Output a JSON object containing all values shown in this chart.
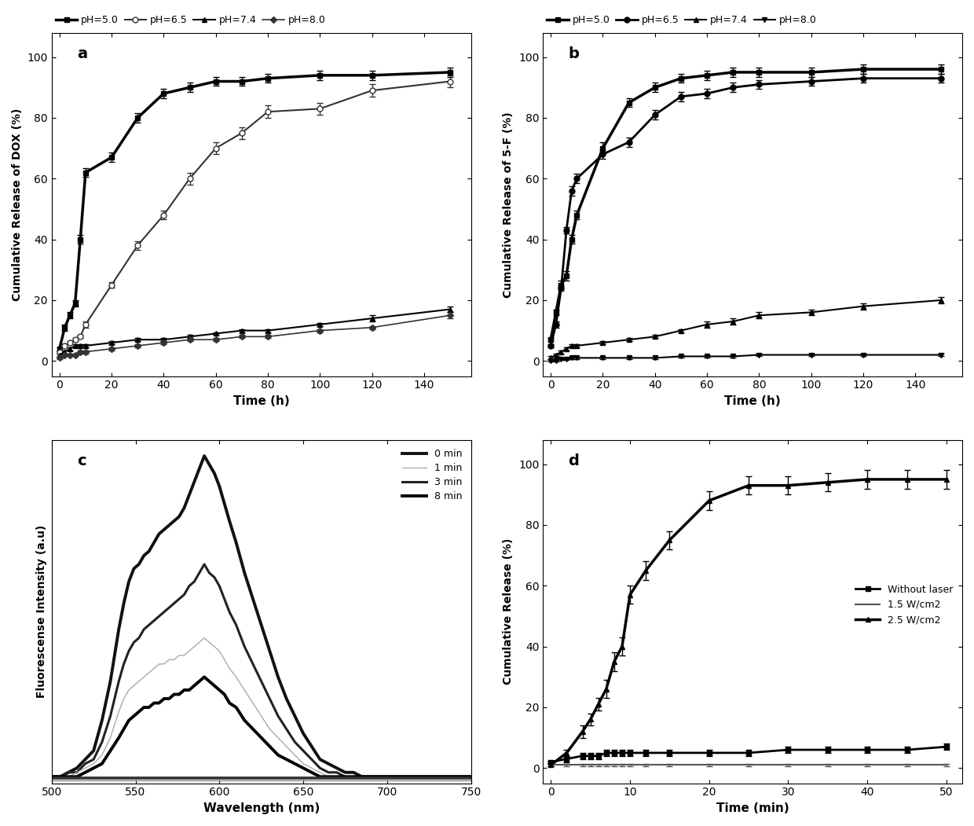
{
  "panel_a": {
    "time": [
      0,
      2,
      4,
      6,
      8,
      10,
      20,
      30,
      40,
      50,
      60,
      70,
      80,
      100,
      120,
      150
    ],
    "pH5": [
      4,
      11,
      15,
      19,
      40,
      62,
      67,
      80,
      88,
      90,
      92,
      92,
      93,
      94,
      94,
      95
    ],
    "pH5_err": [
      0.5,
      1,
      1,
      1,
      1.5,
      1.5,
      1.5,
      1.5,
      1.5,
      1.5,
      1.5,
      1.5,
      1.5,
      1.5,
      1.5,
      1.5
    ],
    "pH65": [
      3,
      5,
      6,
      7,
      8,
      12,
      25,
      38,
      48,
      60,
      70,
      75,
      82,
      83,
      89,
      92
    ],
    "pH65_err": [
      0.5,
      0.5,
      0.5,
      0.5,
      0.5,
      1,
      1,
      1.5,
      1.5,
      2,
      2,
      2,
      2,
      2,
      2,
      2
    ],
    "pH74": [
      2,
      3,
      4,
      5,
      5,
      5,
      6,
      7,
      7,
      8,
      9,
      10,
      10,
      12,
      14,
      17
    ],
    "pH74_err": [
      0.5,
      0.5,
      0.5,
      0.5,
      0.5,
      0.5,
      0.5,
      0.5,
      0.5,
      0.5,
      0.5,
      0.5,
      0.5,
      0.5,
      1,
      1
    ],
    "pH80": [
      1,
      2,
      2,
      2,
      3,
      3,
      4,
      5,
      6,
      7,
      7,
      8,
      8,
      10,
      11,
      15
    ],
    "pH80_err": [
      0.5,
      0.5,
      0.5,
      0.5,
      0.5,
      0.5,
      0.5,
      0.5,
      0.5,
      0.5,
      0.5,
      0.5,
      0.5,
      0.5,
      0.5,
      1
    ],
    "ylabel": "Cumulative Release of DOX (%)",
    "xlabel": "Time (h)",
    "label": "a",
    "ylim": [
      -5,
      108
    ],
    "xlim": [
      -3,
      158
    ]
  },
  "panel_b": {
    "time": [
      0,
      2,
      4,
      6,
      8,
      10,
      20,
      30,
      40,
      50,
      60,
      70,
      80,
      100,
      120,
      150
    ],
    "pH5": [
      7,
      16,
      25,
      28,
      40,
      48,
      70,
      85,
      90,
      93,
      94,
      95,
      95,
      95,
      96,
      96
    ],
    "pH5_err": [
      0.5,
      1,
      1.5,
      1.5,
      1.5,
      1.5,
      2,
      1.5,
      1.5,
      1.5,
      1.5,
      1.5,
      1.5,
      1.5,
      1.5,
      1.5
    ],
    "pH65": [
      5,
      12,
      24,
      43,
      56,
      60,
      68,
      72,
      81,
      87,
      88,
      90,
      91,
      92,
      93,
      93
    ],
    "pH65_err": [
      0.5,
      1,
      1,
      1,
      1.5,
      1.5,
      1.5,
      1.5,
      1.5,
      1.5,
      1.5,
      1.5,
      1.5,
      1.5,
      1.5,
      1.5
    ],
    "pH74": [
      1,
      2,
      3,
      4,
      5,
      5,
      6,
      7,
      8,
      10,
      12,
      13,
      15,
      16,
      18,
      20
    ],
    "pH74_err": [
      0.5,
      0.5,
      0.5,
      0.5,
      0.5,
      0.5,
      0.5,
      0.5,
      0.5,
      0.5,
      1,
      1,
      1,
      1,
      1,
      1
    ],
    "pH80": [
      0,
      0,
      0.5,
      0.5,
      1,
      1,
      1,
      1,
      1,
      1.5,
      1.5,
      1.5,
      2,
      2,
      2,
      2
    ],
    "pH80_err": [
      0.3,
      0.3,
      0.3,
      0.3,
      0.3,
      0.3,
      0.3,
      0.3,
      0.3,
      0.3,
      0.3,
      0.3,
      0.3,
      0.3,
      0.3,
      0.3
    ],
    "ylabel": "Cumulative Release of 5-F (%)",
    "xlabel": "Time (h)",
    "label": "b",
    "ylim": [
      -5,
      108
    ],
    "xlim": [
      -3,
      158
    ]
  },
  "panel_c": {
    "wl": [
      500,
      505,
      510,
      515,
      520,
      525,
      530,
      535,
      540,
      543,
      546,
      549,
      552,
      555,
      558,
      561,
      564,
      567,
      570,
      573,
      576,
      579,
      582,
      585,
      588,
      591,
      594,
      597,
      600,
      603,
      606,
      610,
      615,
      620,
      625,
      630,
      635,
      640,
      645,
      650,
      655,
      660,
      665,
      670,
      675,
      680,
      685,
      690,
      695,
      700,
      710,
      720,
      730,
      740,
      750
    ],
    "i0": [
      0.01,
      0.01,
      0.02,
      0.03,
      0.05,
      0.07,
      0.14,
      0.23,
      0.35,
      0.41,
      0.46,
      0.49,
      0.5,
      0.52,
      0.53,
      0.55,
      0.57,
      0.58,
      0.59,
      0.6,
      0.61,
      0.63,
      0.66,
      0.69,
      0.72,
      0.75,
      0.73,
      0.71,
      0.68,
      0.64,
      0.6,
      0.55,
      0.48,
      0.42,
      0.36,
      0.3,
      0.24,
      0.19,
      0.15,
      0.11,
      0.08,
      0.05,
      0.04,
      0.03,
      0.02,
      0.02,
      0.01,
      0.01,
      0.01,
      0.01,
      0.01,
      0.01,
      0.01,
      0.01,
      0.01
    ],
    "i3": [
      0.01,
      0.01,
      0.02,
      0.02,
      0.04,
      0.05,
      0.09,
      0.15,
      0.23,
      0.27,
      0.3,
      0.32,
      0.33,
      0.35,
      0.36,
      0.37,
      0.38,
      0.39,
      0.4,
      0.41,
      0.42,
      0.43,
      0.45,
      0.46,
      0.48,
      0.5,
      0.48,
      0.47,
      0.45,
      0.42,
      0.39,
      0.36,
      0.31,
      0.27,
      0.23,
      0.19,
      0.15,
      0.12,
      0.09,
      0.07,
      0.05,
      0.03,
      0.02,
      0.02,
      0.01,
      0.01,
      0.01,
      0.01,
      0.01,
      0.01,
      0.01,
      0.01,
      0.01,
      0.01,
      0.01
    ],
    "i1": [
      0.01,
      0.01,
      0.01,
      0.02,
      0.03,
      0.04,
      0.06,
      0.1,
      0.16,
      0.19,
      0.21,
      0.22,
      0.23,
      0.24,
      0.25,
      0.26,
      0.27,
      0.27,
      0.28,
      0.28,
      0.29,
      0.29,
      0.3,
      0.31,
      0.32,
      0.33,
      0.32,
      0.31,
      0.3,
      0.28,
      0.26,
      0.24,
      0.21,
      0.18,
      0.15,
      0.12,
      0.1,
      0.08,
      0.06,
      0.04,
      0.03,
      0.02,
      0.01,
      0.01,
      0.01,
      0.01,
      0.01,
      0.01,
      0.01,
      0.01,
      0.01,
      0.01,
      0.01,
      0.01,
      0.01
    ],
    "i8": [
      0.01,
      0.01,
      0.01,
      0.01,
      0.02,
      0.03,
      0.04,
      0.07,
      0.1,
      0.12,
      0.14,
      0.15,
      0.16,
      0.17,
      0.17,
      0.18,
      0.18,
      0.19,
      0.19,
      0.2,
      0.2,
      0.21,
      0.21,
      0.22,
      0.23,
      0.24,
      0.23,
      0.22,
      0.21,
      0.2,
      0.18,
      0.17,
      0.14,
      0.12,
      0.1,
      0.08,
      0.06,
      0.05,
      0.04,
      0.03,
      0.02,
      0.01,
      0.01,
      0.01,
      0.01,
      0.01,
      0.01,
      0.01,
      0.01,
      0.01,
      0.01,
      0.01,
      0.01,
      0.01,
      0.01
    ],
    "ylabel": "Fluorescense Intensity (a.u)",
    "xlabel": "Wavelength (nm)",
    "label": "c",
    "xlim": [
      500,
      750
    ]
  },
  "panel_d": {
    "time": [
      0,
      2,
      4,
      5,
      6,
      7,
      8,
      9,
      10,
      12,
      15,
      20,
      25,
      30,
      35,
      40,
      45,
      50
    ],
    "no_laser": [
      2,
      3,
      4,
      4,
      4,
      5,
      5,
      5,
      5,
      5,
      5,
      5,
      5,
      6,
      6,
      6,
      6,
      7
    ],
    "no_laser_err": [
      0.5,
      1,
      1,
      1,
      1,
      1,
      1,
      1,
      1,
      1,
      1,
      1,
      1,
      1,
      1,
      1,
      1,
      1
    ],
    "w15": [
      1,
      1,
      1,
      1,
      1,
      1,
      1,
      1,
      1,
      1,
      1,
      1,
      1,
      1,
      1,
      1,
      1,
      1
    ],
    "w15_err": [
      0.3,
      0.3,
      0.3,
      0.3,
      0.3,
      0.3,
      0.3,
      0.3,
      0.3,
      0.3,
      0.3,
      0.3,
      0.3,
      0.3,
      0.3,
      0.3,
      0.3,
      0.3
    ],
    "w25": [
      1,
      5,
      12,
      16,
      21,
      26,
      35,
      40,
      57,
      65,
      75,
      88,
      93,
      93,
      94,
      95,
      95,
      95
    ],
    "w25_err": [
      0.5,
      1,
      2,
      2,
      2,
      3,
      3,
      3,
      3,
      3,
      3,
      3,
      3,
      3,
      3,
      3,
      3,
      3
    ],
    "ylabel": "Cumulative Release (%)",
    "xlabel": "Time (min)",
    "label": "d",
    "ylim": [
      -5,
      108
    ],
    "xlim": [
      -1,
      52
    ]
  }
}
